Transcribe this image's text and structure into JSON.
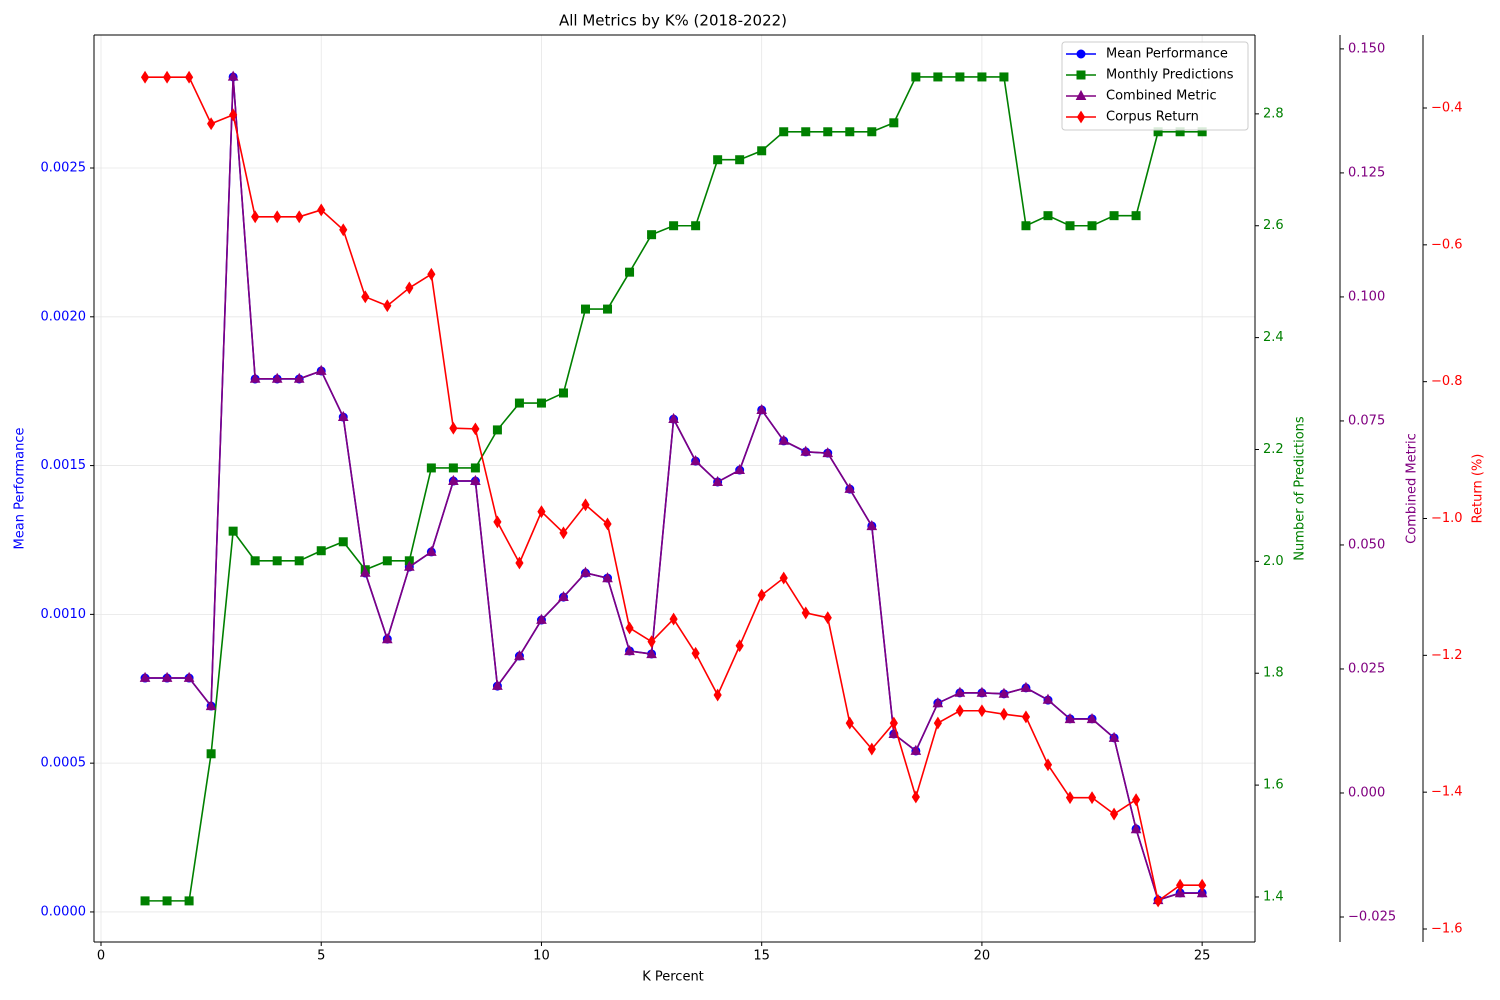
{
  "chart_data": {
    "type": "line",
    "title": "All Metrics by K% (2018-2022)",
    "xlabel": "K Percent",
    "ylabel": "Mean Performance",
    "y2label": "Number of Predictions",
    "y3label": "Combined Metric",
    "y4label": "Return (%)",
    "x": [
      1,
      1.5,
      2,
      2.5,
      3,
      3.5,
      4,
      4.5,
      5,
      5.5,
      6,
      6.5,
      7,
      7.5,
      8,
      8.5,
      9,
      9.5,
      10,
      10.5,
      11,
      11.5,
      12,
      12.5,
      13,
      13.5,
      14,
      14.5,
      15,
      15.5,
      16,
      16.5,
      17,
      17.5,
      18,
      18.5,
      19,
      19.5,
      20,
      20.5,
      21,
      21.5,
      22,
      22.5,
      23,
      23.5,
      24,
      24.5,
      25
    ],
    "xlim": [
      -0.159,
      26.2
    ],
    "xticks": [
      0,
      5,
      10,
      15,
      20,
      25
    ],
    "ylim": [
      -0.000101,
      0.002947
    ],
    "yticks": [
      {
        "value": 0,
        "label": "0.0000"
      },
      {
        "value": 0.0005,
        "label": "0.0005"
      },
      {
        "value": 0.001,
        "label": "0.0010"
      },
      {
        "value": 0.0015,
        "label": "0.0015"
      },
      {
        "value": 0.002,
        "label": "0.0020"
      },
      {
        "value": 0.0025,
        "label": "0.0025"
      }
    ],
    "y2lim": [
      1.3195,
      2.941
    ],
    "y2ticks": [
      1.4,
      1.6,
      1.8,
      {
        "value": 2.0,
        "label": "2.0"
      },
      2.2,
      2.4,
      2.6,
      2.8
    ],
    "y3lim": [
      -0.03004,
      0.1528
    ],
    "y3ticks": [
      {
        "value": -0.025,
        "label": "−0.025"
      },
      {
        "value": 0,
        "label": "0.000"
      },
      {
        "value": 0.025,
        "label": "0.025"
      },
      {
        "value": 0.05,
        "label": "0.050"
      },
      {
        "value": 0.075,
        "label": "0.075"
      },
      {
        "value": 0.1,
        "label": "0.100"
      },
      {
        "value": 0.125,
        "label": "0.125"
      },
      {
        "value": 0.15,
        "label": "0.150"
      }
    ],
    "y4lim": [
      -1.619,
      -0.2933
    ],
    "y4ticks": [
      {
        "value": -1.6,
        "label": "−1.6"
      },
      {
        "value": -1.4,
        "label": "−1.4"
      },
      {
        "value": -1.2,
        "label": "−1.2"
      },
      {
        "value": -1.0,
        "label": "−1.0"
      },
      {
        "value": -0.8,
        "label": "−0.8"
      },
      {
        "value": -0.6,
        "label": "−0.6"
      },
      {
        "value": -0.4,
        "label": "−0.4"
      }
    ],
    "grid": true,
    "legend": "upper right",
    "series": [
      {
        "name": "Mean Performance",
        "color": "#0000ff",
        "marker": "o",
        "axis": "y",
        "values": [
          0.000786,
          0.000786,
          0.000786,
          0.000692,
          0.002806,
          0.001791,
          0.001791,
          0.001791,
          0.001818,
          0.001663,
          0.001139,
          0.000917,
          0.001159,
          0.00121,
          0.001448,
          0.001448,
          0.000759,
          0.00086,
          0.000981,
          0.001058,
          0.001139,
          0.001122,
          0.000877,
          0.000867,
          0.001656,
          0.001515,
          0.001445,
          0.001485,
          0.001687,
          0.001583,
          0.001546,
          0.001542,
          0.001421,
          0.001297,
          0.000598,
          0.000541,
          0.000702,
          0.000736,
          0.000736,
          0.000733,
          0.000753,
          0.000712,
          0.000649,
          0.000649,
          0.000585,
          0.000279,
          4e-05,
          6.4e-05,
          6.4e-05
        ]
      },
      {
        "name": "Monthly Predictions",
        "color": "#008000",
        "marker": "s",
        "axis": "y2",
        "values": [
          1.393,
          1.393,
          1.393,
          1.656,
          2.054,
          2.001,
          2.001,
          2.001,
          2.019,
          2.035,
          1.985,
          2.001,
          2.001,
          2.167,
          2.167,
          2.167,
          2.235,
          2.283,
          2.283,
          2.301,
          2.451,
          2.451,
          2.517,
          2.584,
          2.6,
          2.6,
          2.718,
          2.718,
          2.734,
          2.768,
          2.768,
          2.768,
          2.768,
          2.768,
          2.784,
          2.866,
          2.866,
          2.866,
          2.866,
          2.866,
          2.6,
          2.618,
          2.6,
          2.6,
          2.618,
          2.618,
          2.768,
          2.768,
          2.768
        ]
      },
      {
        "name": "Combined Metric",
        "color": "#800080",
        "marker": "^",
        "axis": "y3",
        "values": [
          0.0232,
          0.0232,
          0.0232,
          0.0175,
          0.1444,
          0.0835,
          0.0835,
          0.0835,
          0.0851,
          0.0758,
          0.0444,
          0.031,
          0.0456,
          0.0486,
          0.0629,
          0.0629,
          0.0216,
          0.0276,
          0.0349,
          0.0395,
          0.0444,
          0.0433,
          0.0286,
          0.028,
          0.0754,
          0.0669,
          0.0627,
          0.0651,
          0.0772,
          0.071,
          0.0688,
          0.0685,
          0.0613,
          0.0538,
          0.0119,
          0.0085,
          0.0181,
          0.0202,
          0.0202,
          0.02,
          0.0212,
          0.0188,
          0.0149,
          0.0149,
          0.0111,
          -0.0073,
          -0.0216,
          -0.0202,
          -0.0202
        ]
      },
      {
        "name": "Corpus Return",
        "color": "#ff0000",
        "marker": "d",
        "axis": "y4",
        "values": [
          -0.355,
          -0.355,
          -0.355,
          -0.423,
          -0.41,
          -0.559,
          -0.559,
          -0.559,
          -0.549,
          -0.578,
          -0.676,
          -0.689,
          -0.663,
          -0.643,
          -0.868,
          -0.869,
          -1.005,
          -1.065,
          -0.99,
          -1.021,
          -0.98,
          -1.008,
          -1.16,
          -1.18,
          -1.147,
          -1.197,
          -1.258,
          -1.186,
          -1.112,
          -1.087,
          -1.138,
          -1.145,
          -1.299,
          -1.337,
          -1.299,
          -1.407,
          -1.299,
          -1.281,
          -1.281,
          -1.286,
          -1.29,
          -1.36,
          -1.408,
          -1.408,
          -1.432,
          -1.411,
          -1.559,
          -1.536,
          -1.536
        ]
      }
    ]
  }
}
